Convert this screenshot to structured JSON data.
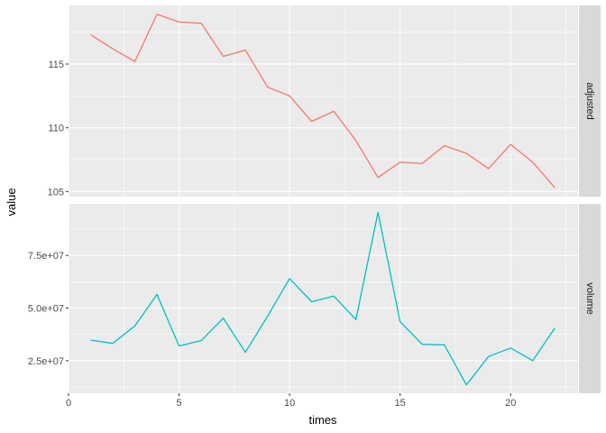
{
  "chart_data": {
    "type": "line",
    "xlabel": "times",
    "ylabel": "value",
    "x": [
      1,
      2,
      3,
      4,
      5,
      6,
      7,
      8,
      9,
      10,
      11,
      12,
      13,
      14,
      15,
      16,
      17,
      18,
      19,
      20,
      21,
      22
    ],
    "x_ticks": [
      0,
      5,
      10,
      15,
      20
    ],
    "x_tick_labels": [
      "0",
      "5",
      "10",
      "15",
      "20"
    ],
    "xlim": [
      0,
      23.05
    ],
    "grid": true,
    "legend": "none",
    "facets": [
      {
        "strip": "adjusted",
        "color": "#F8766D",
        "values": [
          117.3,
          116.2,
          115.2,
          118.9,
          118.3,
          118.2,
          115.6,
          116.1,
          113.2,
          112.5,
          110.5,
          111.3,
          109.0,
          106.1,
          107.3,
          107.2,
          108.6,
          108.0,
          106.8,
          108.7,
          107.3,
          105.3
        ],
        "y_ticks": [
          105,
          110,
          115
        ],
        "y_tick_labels": [
          "105",
          "110",
          "115"
        ],
        "ylim": [
          104.6,
          119.6
        ]
      },
      {
        "strip": "volume",
        "color": "#00BFC4",
        "values": [
          34800000,
          33200000,
          41500000,
          56500000,
          32000000,
          34500000,
          45200000,
          29000000,
          46000000,
          64000000,
          53000000,
          55700000,
          44500000,
          95500000,
          43500000,
          32800000,
          32500000,
          13500000,
          27000000,
          31000000,
          25000000,
          40500000
        ],
        "y_ticks": [
          25000000,
          50000000,
          75000000
        ],
        "y_tick_labels": [
          "2.5e+07",
          "5.0e+07",
          "7.5e+07"
        ],
        "ylim": [
          9500000,
          99500000
        ]
      }
    ]
  }
}
